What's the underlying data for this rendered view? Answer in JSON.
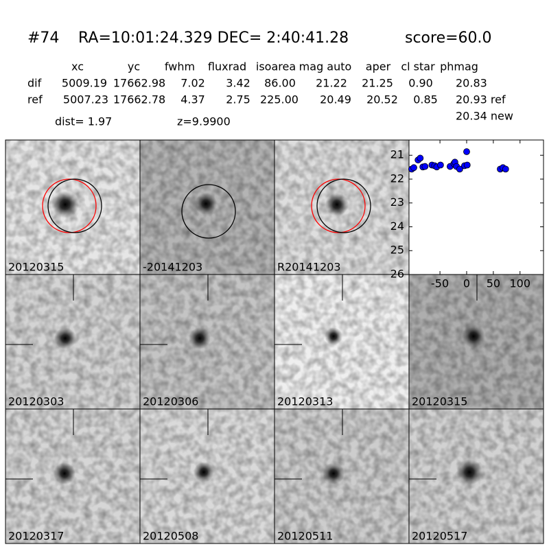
{
  "header": {
    "id": "#74",
    "coords": "RA=10:01:24.329 DEC= 2:40:41.28",
    "score": "score=60.0",
    "dist": "dist=  1.97",
    "z": "z=9.9900"
  },
  "table": {
    "columns": [
      "xc",
      "yc",
      "fwhm",
      "fluxrad",
      "isoarea",
      "mag auto",
      "aper",
      "cl star",
      "phmag"
    ],
    "rows": [
      [
        "dif",
        "5009.19",
        "17662.98",
        "7.02",
        "3.42",
        "86.00",
        "21.22",
        "21.25",
        "0.90",
        "20.83"
      ],
      [
        "ref",
        "5007.23",
        "17662.78",
        "4.37",
        "2.75",
        "225.00",
        "20.49",
        "20.52",
        "0.85",
        "20.93 ref"
      ]
    ],
    "extra": "20.34 new"
  },
  "panels": [
    {
      "label": "20120315"
    },
    {
      "label": "-20141203"
    },
    {
      "label": "R20141203"
    },
    {
      "label": "20120303"
    },
    {
      "label": "20120306"
    },
    {
      "label": "20120313"
    },
    {
      "label": "20120315"
    },
    {
      "label": "20120317"
    },
    {
      "label": "20120508"
    },
    {
      "label": "20120511"
    },
    {
      "label": "20120517"
    }
  ],
  "chart_data": {
    "type": "scatter",
    "color": "#0000ff",
    "x": [
      -103,
      -99,
      -91,
      -87,
      -82,
      -78,
      -65,
      -60,
      -56,
      -49,
      -31,
      -24,
      -22,
      -19,
      -13,
      -4,
      0,
      1,
      63,
      68,
      73
    ],
    "values": [
      21.58,
      21.52,
      21.2,
      21.12,
      21.49,
      21.47,
      21.41,
      21.44,
      21.49,
      21.41,
      21.47,
      21.35,
      21.29,
      21.47,
      21.58,
      21.44,
      20.85,
      21.41,
      21.58,
      21.52,
      21.58
    ],
    "xlim": [
      -108,
      144
    ],
    "ylim": [
      26,
      20.36
    ],
    "xticks": [
      -50,
      0,
      50,
      100
    ],
    "yticks": [
      21,
      22,
      23,
      24,
      25,
      26
    ]
  }
}
